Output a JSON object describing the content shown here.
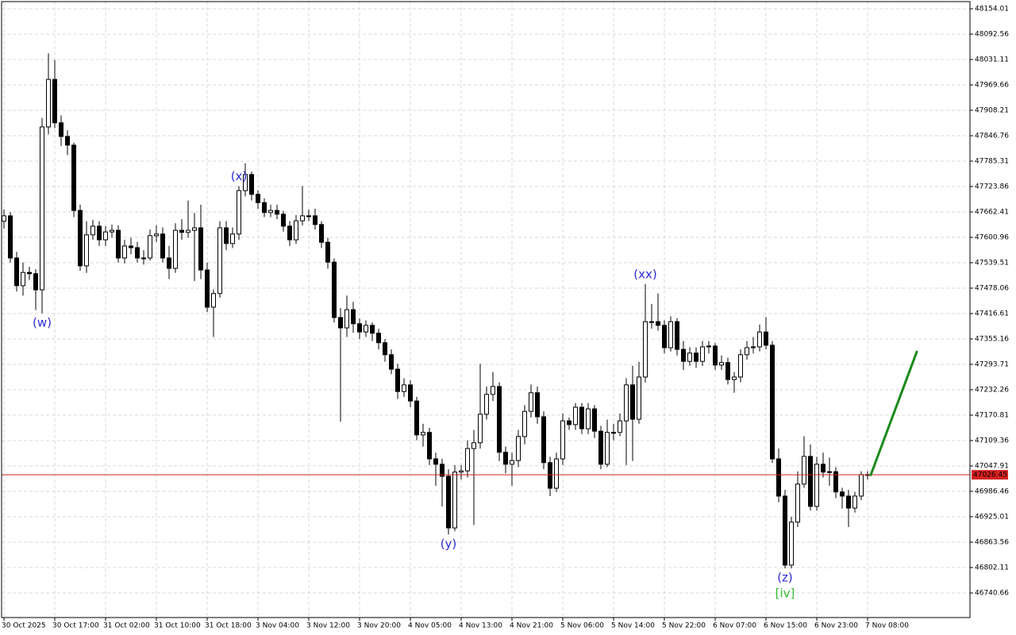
{
  "chart_data": {
    "type": "candlestick",
    "categories": [
      "30 Oct 2025",
      null,
      null,
      null,
      null,
      null,
      null,
      null,
      "30 Oct 17:00",
      null,
      null,
      null,
      null,
      null,
      null,
      null,
      "31 Oct 02:00",
      null,
      null,
      null,
      null,
      null,
      null,
      null,
      "31 Oct 10:00",
      null,
      null,
      null,
      null,
      null,
      null,
      null,
      "31 Oct 18:00",
      null,
      null,
      null,
      null,
      null,
      null,
      null,
      "3 Nov 04:00",
      null,
      null,
      null,
      null,
      null,
      null,
      null,
      "3 Nov 12:00",
      null,
      null,
      null,
      null,
      null,
      null,
      null,
      "3 Nov 20:00",
      null,
      null,
      null,
      null,
      null,
      null,
      null,
      "4 Nov 05:00",
      null,
      null,
      null,
      null,
      null,
      null,
      null,
      "4 Nov 13:00",
      null,
      null,
      null,
      null,
      null,
      null,
      null,
      "4 Nov 21:00",
      null,
      null,
      null,
      null,
      null,
      null,
      null,
      "5 Nov 06:00",
      null,
      null,
      null,
      null,
      null,
      null,
      null,
      "5 Nov 14:00",
      null,
      null,
      null,
      null,
      null,
      null,
      null,
      "5 Nov 22:00",
      null,
      null,
      null,
      null,
      null,
      null,
      null,
      "6 Nov 07:00",
      null,
      null,
      null,
      null,
      null,
      null,
      null,
      "6 Nov 15:00",
      null,
      null,
      null,
      null,
      null,
      null,
      null,
      "6 Nov 23:00",
      null,
      null,
      null,
      null,
      null,
      null,
      null,
      "7 Nov 08:00"
    ],
    "open": [
      47640,
      47653,
      47551,
      47484,
      47516,
      47513,
      47474,
      47868,
      47983,
      47878,
      47845,
      47824,
      47666,
      47532,
      47607,
      47628,
      47595,
      47614,
      47618,
      47551,
      47580,
      47576,
      47551,
      47551,
      47605,
      47609,
      47551,
      47526,
      47618,
      47613,
      47618,
      47624,
      47522,
      47432,
      47465,
      47624,
      47586,
      47609,
      47714,
      47753,
      47705,
      47685,
      47661,
      47666,
      47657,
      47628,
      47595,
      47641,
      47653,
      47653,
      47632,
      47589,
      47541,
      47407,
      47382,
      47426,
      47392,
      47372,
      47388,
      47369,
      47346,
      47317,
      47282,
      47228,
      47244,
      47205,
      47123,
      47129,
      47065,
      47052,
      47023,
      46898,
      47033,
      47036,
      47090,
      47104,
      47173,
      47221,
      47240,
      47081,
      47052,
      47061,
      47119,
      47180,
      47225,
      47167,
      47056,
      46994,
      47065,
      47157,
      47148,
      47190,
      47138,
      47186,
      47132,
      47052,
      47129,
      47129,
      47157,
      47244,
      47161,
      47263,
      47397,
      47397,
      47388,
      47334,
      47397,
      47330,
      47301,
      47321,
      47301,
      47336,
      47338,
      47292,
      47298,
      47257,
      47263,
      47317,
      47334,
      47336,
      47372,
      47340,
      47065,
      46975,
      46808,
      46912,
      47004,
      47071,
      46950,
      47052,
      47033,
      47034,
      46985,
      46975,
      46946,
      46975,
      47027
    ],
    "high": [
      47668,
      47662,
      47566,
      47540,
      47530,
      47524,
      47890,
      48046,
      48030,
      47896,
      47860,
      47830,
      47680,
      47640,
      47643,
      47640,
      47628,
      47632,
      47630,
      47595,
      47600,
      47590,
      47570,
      47620,
      47630,
      47625,
      47580,
      47635,
      47645,
      47690,
      47660,
      47680,
      47540,
      47475,
      47640,
      47640,
      47625,
      47725,
      47780,
      47760,
      47715,
      47695,
      47680,
      47680,
      47665,
      47640,
      47655,
      47725,
      47668,
      47670,
      47640,
      47600,
      47550,
      47430,
      47460,
      47445,
      47405,
      47400,
      47395,
      47380,
      47355,
      47330,
      47295,
      47260,
      47255,
      47215,
      47150,
      47140,
      47080,
      47065,
      47040,
      47050,
      47050,
      47110,
      47135,
      47295,
      47240,
      47275,
      47250,
      47095,
      47080,
      47135,
      47195,
      47245,
      47240,
      47180,
      47070,
      47080,
      47175,
      47165,
      47200,
      47200,
      47200,
      47195,
      47145,
      47160,
      47150,
      47175,
      47260,
      47290,
      47300,
      47488,
      47440,
      47465,
      47400,
      47410,
      47405,
      47350,
      47335,
      47335,
      47350,
      47350,
      47345,
      47315,
      47310,
      47275,
      47330,
      47350,
      47360,
      47390,
      47408,
      47350,
      47090,
      46990,
      46925,
      47035,
      47120,
      47100,
      47070,
      47080,
      47068,
      47045,
      46995,
      46990,
      46985,
      47035,
      47035
    ],
    "low": [
      47622,
      47540,
      47470,
      47460,
      47498,
      47425,
      47417,
      47850,
      47865,
      47822,
      47800,
      47650,
      47520,
      47515,
      47595,
      47580,
      47580,
      47600,
      47540,
      47538,
      47560,
      47540,
      47535,
      47545,
      47590,
      47540,
      47500,
      47515,
      47595,
      47600,
      47495,
      47500,
      47420,
      47360,
      47455,
      47570,
      47575,
      47595,
      47700,
      47690,
      47670,
      47650,
      47650,
      47645,
      47615,
      47580,
      47585,
      47630,
      47640,
      47620,
      47575,
      47525,
      47395,
      47155,
      47360,
      47370,
      47355,
      47360,
      47350,
      47330,
      47300,
      47270,
      47210,
      47215,
      47190,
      47110,
      47095,
      47050,
      47000,
      46950,
      46882,
      46890,
      47015,
      47020,
      46905,
      47090,
      47160,
      47205,
      47060,
      47030,
      47000,
      47045,
      47100,
      47165,
      47150,
      47040,
      46975,
      46985,
      47050,
      47135,
      47135,
      47125,
      47125,
      47115,
      47040,
      47045,
      47110,
      47120,
      47050,
      47060,
      47150,
      47250,
      47380,
      47375,
      47320,
      47325,
      47315,
      47280,
      47290,
      47285,
      47290,
      47320,
      47280,
      47280,
      47245,
      47225,
      47250,
      47305,
      47320,
      47325,
      47330,
      47055,
      46960,
      46800,
      46800,
      46900,
      46995,
      46940,
      46940,
      47020,
      47000,
      46970,
      46945,
      46900,
      46935,
      46965,
      47015
    ],
    "close": [
      47653,
      47551,
      47484,
      47516,
      47513,
      47474,
      47868,
      47983,
      47878,
      47845,
      47824,
      47666,
      47532,
      47607,
      47628,
      47595,
      47614,
      47618,
      47551,
      47580,
      47576,
      47551,
      47551,
      47605,
      47609,
      47551,
      47526,
      47618,
      47613,
      47618,
      47624,
      47522,
      47432,
      47465,
      47624,
      47586,
      47609,
      47714,
      47753,
      47705,
      47685,
      47661,
      47666,
      47657,
      47628,
      47595,
      47641,
      47653,
      47653,
      47632,
      47589,
      47541,
      47407,
      47382,
      47426,
      47392,
      47372,
      47388,
      47369,
      47346,
      47317,
      47282,
      47228,
      47244,
      47205,
      47123,
      47129,
      47065,
      47052,
      47023,
      46898,
      47033,
      47036,
      47090,
      47104,
      47173,
      47221,
      47240,
      47081,
      47052,
      47061,
      47119,
      47180,
      47225,
      47167,
      47056,
      46994,
      47065,
      47157,
      47148,
      47190,
      47138,
      47186,
      47132,
      47052,
      47129,
      47129,
      47157,
      47244,
      47161,
      47263,
      47397,
      47397,
      47388,
      47334,
      47397,
      47330,
      47301,
      47321,
      47301,
      47336,
      47338,
      47292,
      47298,
      47257,
      47263,
      47317,
      47334,
      47336,
      47372,
      47340,
      47065,
      46975,
      46808,
      46912,
      47004,
      47071,
      46950,
      47052,
      47033,
      47034,
      46985,
      46975,
      46946,
      46975,
      47027,
      47026
    ],
    "up_color": "#ffffff",
    "down_color": "#000000",
    "ylim": [
      46681.13,
      48175.13
    ],
    "yticks": [
      48154.01,
      48092.56,
      48031.11,
      47969.66,
      47908.21,
      47846.76,
      47785.31,
      47723.86,
      47662.41,
      47600.96,
      47539.51,
      47478.06,
      47416.61,
      47355.16,
      47293.71,
      47232.26,
      47170.81,
      47109.36,
      47047.91,
      46986.46,
      46925.01,
      46863.56,
      46802.11,
      46740.66
    ],
    "grid": true,
    "current_price": 47026.45,
    "current_price_color": "#d62020",
    "forecast_target": 47324,
    "forecast_color": "#1a8a1a",
    "annotations": [
      {
        "text": "(w)",
        "color": "#2b2bd6"
      },
      {
        "text": "(x)",
        "color": "#2b2bd6"
      },
      {
        "text": "(y)",
        "color": "#2b2bd6"
      },
      {
        "text": "(xx)",
        "color": "#2b2bd6"
      },
      {
        "text": "(z)",
        "color": "#2b2bd6"
      },
      {
        "text": "[iv]",
        "color": "#33bb33"
      }
    ]
  }
}
